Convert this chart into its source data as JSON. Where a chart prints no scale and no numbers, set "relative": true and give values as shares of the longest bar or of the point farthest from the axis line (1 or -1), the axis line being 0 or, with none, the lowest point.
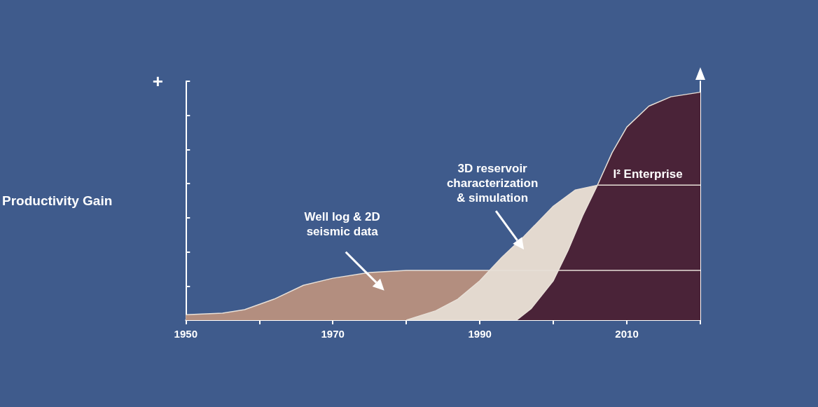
{
  "chart_data": {
    "type": "area",
    "relative": true,
    "ylabel": "Productivity Gain",
    "xlim": [
      1950,
      2020
    ],
    "xticks": [
      1950,
      {
        "value": 1960,
        "label": null
      },
      1970,
      {
        "value": 1980,
        "label": null
      },
      1990,
      {
        "value": 2000,
        "label": null
      },
      2010,
      {
        "value": 2020,
        "label": null
      }
    ],
    "series": [
      {
        "color": "#b38e7f",
        "x": [
          1950,
          1955,
          1958,
          1962,
          1966,
          1970,
          1975,
          1980,
          1990,
          2000,
          2010,
          2020
        ],
        "values": [
          0.024,
          0.031,
          0.046,
          0.092,
          0.153,
          0.184,
          0.209,
          0.218,
          0.218,
          0.218,
          0.218,
          0.218
        ]
      },
      {
        "color": "#e3d9cf",
        "x": [
          1980,
          1984,
          1987,
          1990,
          1993,
          1996,
          2000,
          2003,
          2006,
          2010,
          2020
        ],
        "values": [
          0,
          0.041,
          0.092,
          0.173,
          0.276,
          0.367,
          0.5,
          0.571,
          0.592,
          0.592,
          0.592
        ]
      },
      {
        "color": "#4a2338",
        "x": [
          1995,
          1997,
          2000,
          2002,
          2004,
          2006,
          2008,
          2010,
          2013,
          2016,
          2020
        ],
        "values": [
          0,
          0.051,
          0.173,
          0.306,
          0.459,
          0.592,
          0.735,
          0.847,
          0.939,
          0.98,
          1
        ]
      }
    ],
    "annotations": [
      "+",
      "Well log & 2D\nseismic data",
      "3D reservoir\ncharacterization\n& simulation",
      "I² Enterprise"
    ],
    "grid": false
  }
}
